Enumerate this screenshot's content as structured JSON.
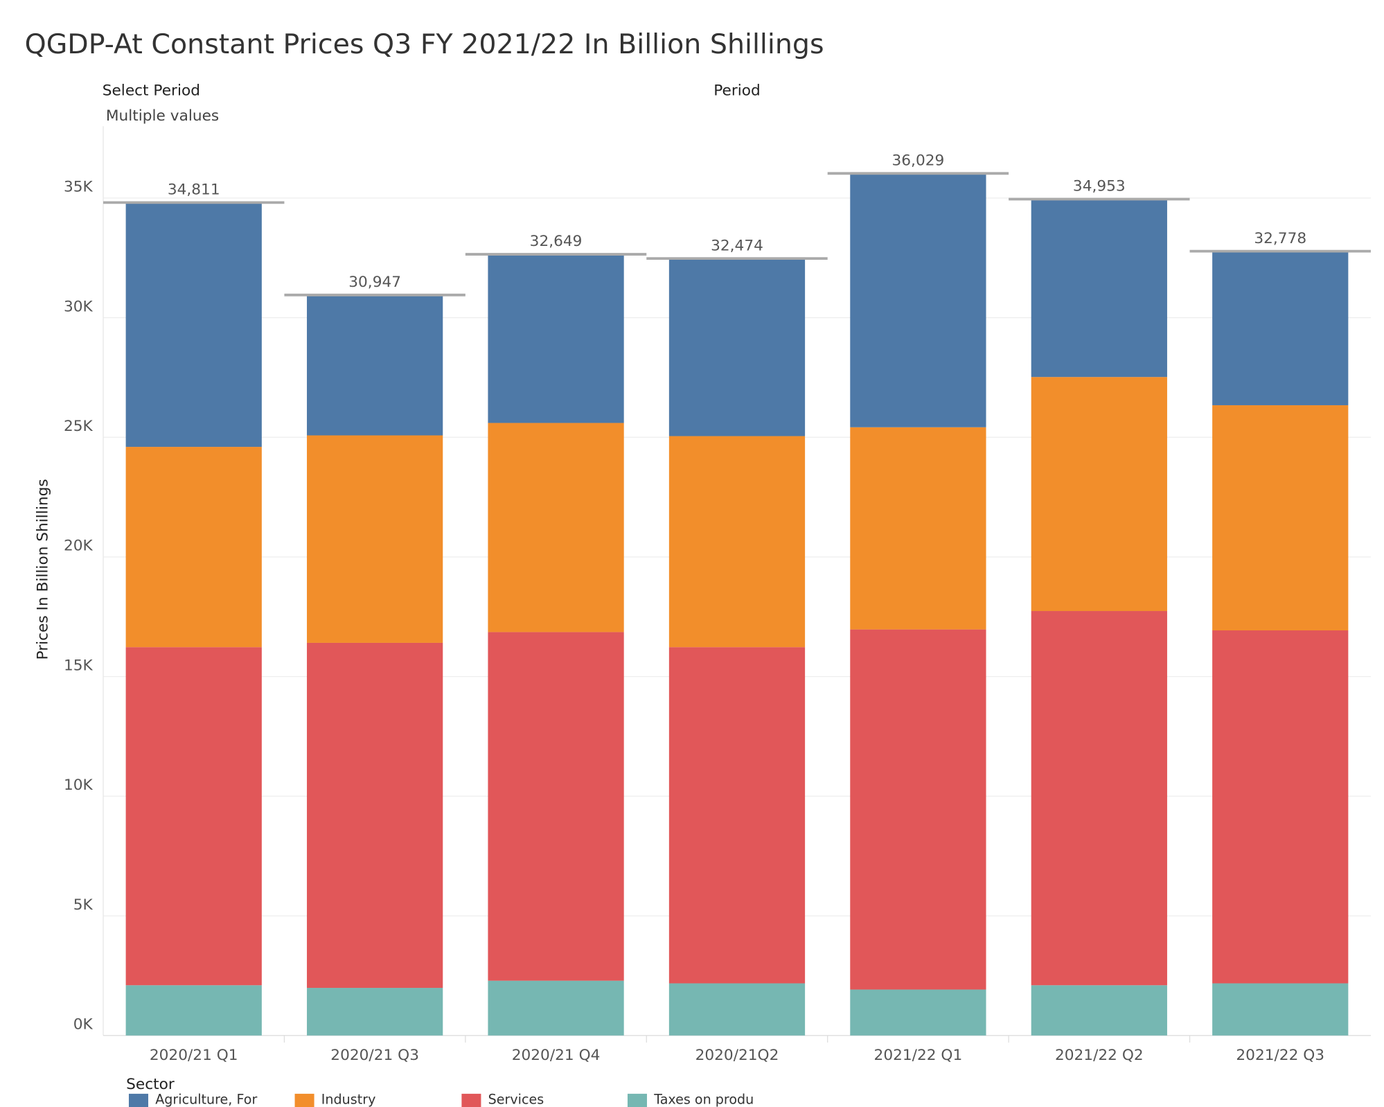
{
  "chart_data": {
    "type": "stacked-bar",
    "title": "QGDP-At Constant Prices Q3 FY 2021/22 In Billion Shillings",
    "filters": {
      "select_label": "Select Period",
      "select_value": "Multiple values",
      "column_header": "Period"
    },
    "y_label": "Prices In Billion Shillings",
    "legend_title": "Sector",
    "categories": [
      "2020/21 Q1",
      "2020/21 Q3",
      "2020/21 Q4",
      "2020/21Q2",
      "2021/22 Q1",
      "2021/22 Q2",
      "2021/22 Q3"
    ],
    "series": [
      {
        "name": "Agriculture, For",
        "color": "#4e79a7",
        "values": [
          10211,
          5867,
          7049,
          7424,
          10609,
          7433,
          6438
        ]
      },
      {
        "name": "Industry",
        "color": "#f28e2b",
        "values": [
          8370,
          8670,
          8740,
          8820,
          8450,
          9780,
          9410
        ]
      },
      {
        "name": "Services",
        "color": "#e15759",
        "values": [
          14130,
          14420,
          14570,
          14050,
          15050,
          15640,
          14750
        ]
      },
      {
        "name": "Taxes on produ",
        "color": "#76b7b2",
        "values": [
          2100,
          1990,
          2290,
          2180,
          1920,
          2100,
          2180
        ]
      }
    ],
    "totals": [
      34811,
      30947,
      32649,
      32474,
      36029,
      34953,
      32778
    ],
    "totals_labels": [
      "34,811",
      "30,947",
      "32,649",
      "32,474",
      "36,029",
      "34,953",
      "32,778"
    ],
    "ylim": [
      0,
      38000
    ],
    "yticks": [
      {
        "value": 0,
        "label": "0K"
      },
      {
        "value": 5000,
        "label": "5K"
      },
      {
        "value": 10000,
        "label": "10K"
      },
      {
        "value": 15000,
        "label": "15K"
      },
      {
        "value": 20000,
        "label": "20K"
      },
      {
        "value": 25000,
        "label": "25K"
      },
      {
        "value": 30000,
        "label": "30K"
      },
      {
        "value": 35000,
        "label": "35K"
      }
    ],
    "grid": true
  }
}
